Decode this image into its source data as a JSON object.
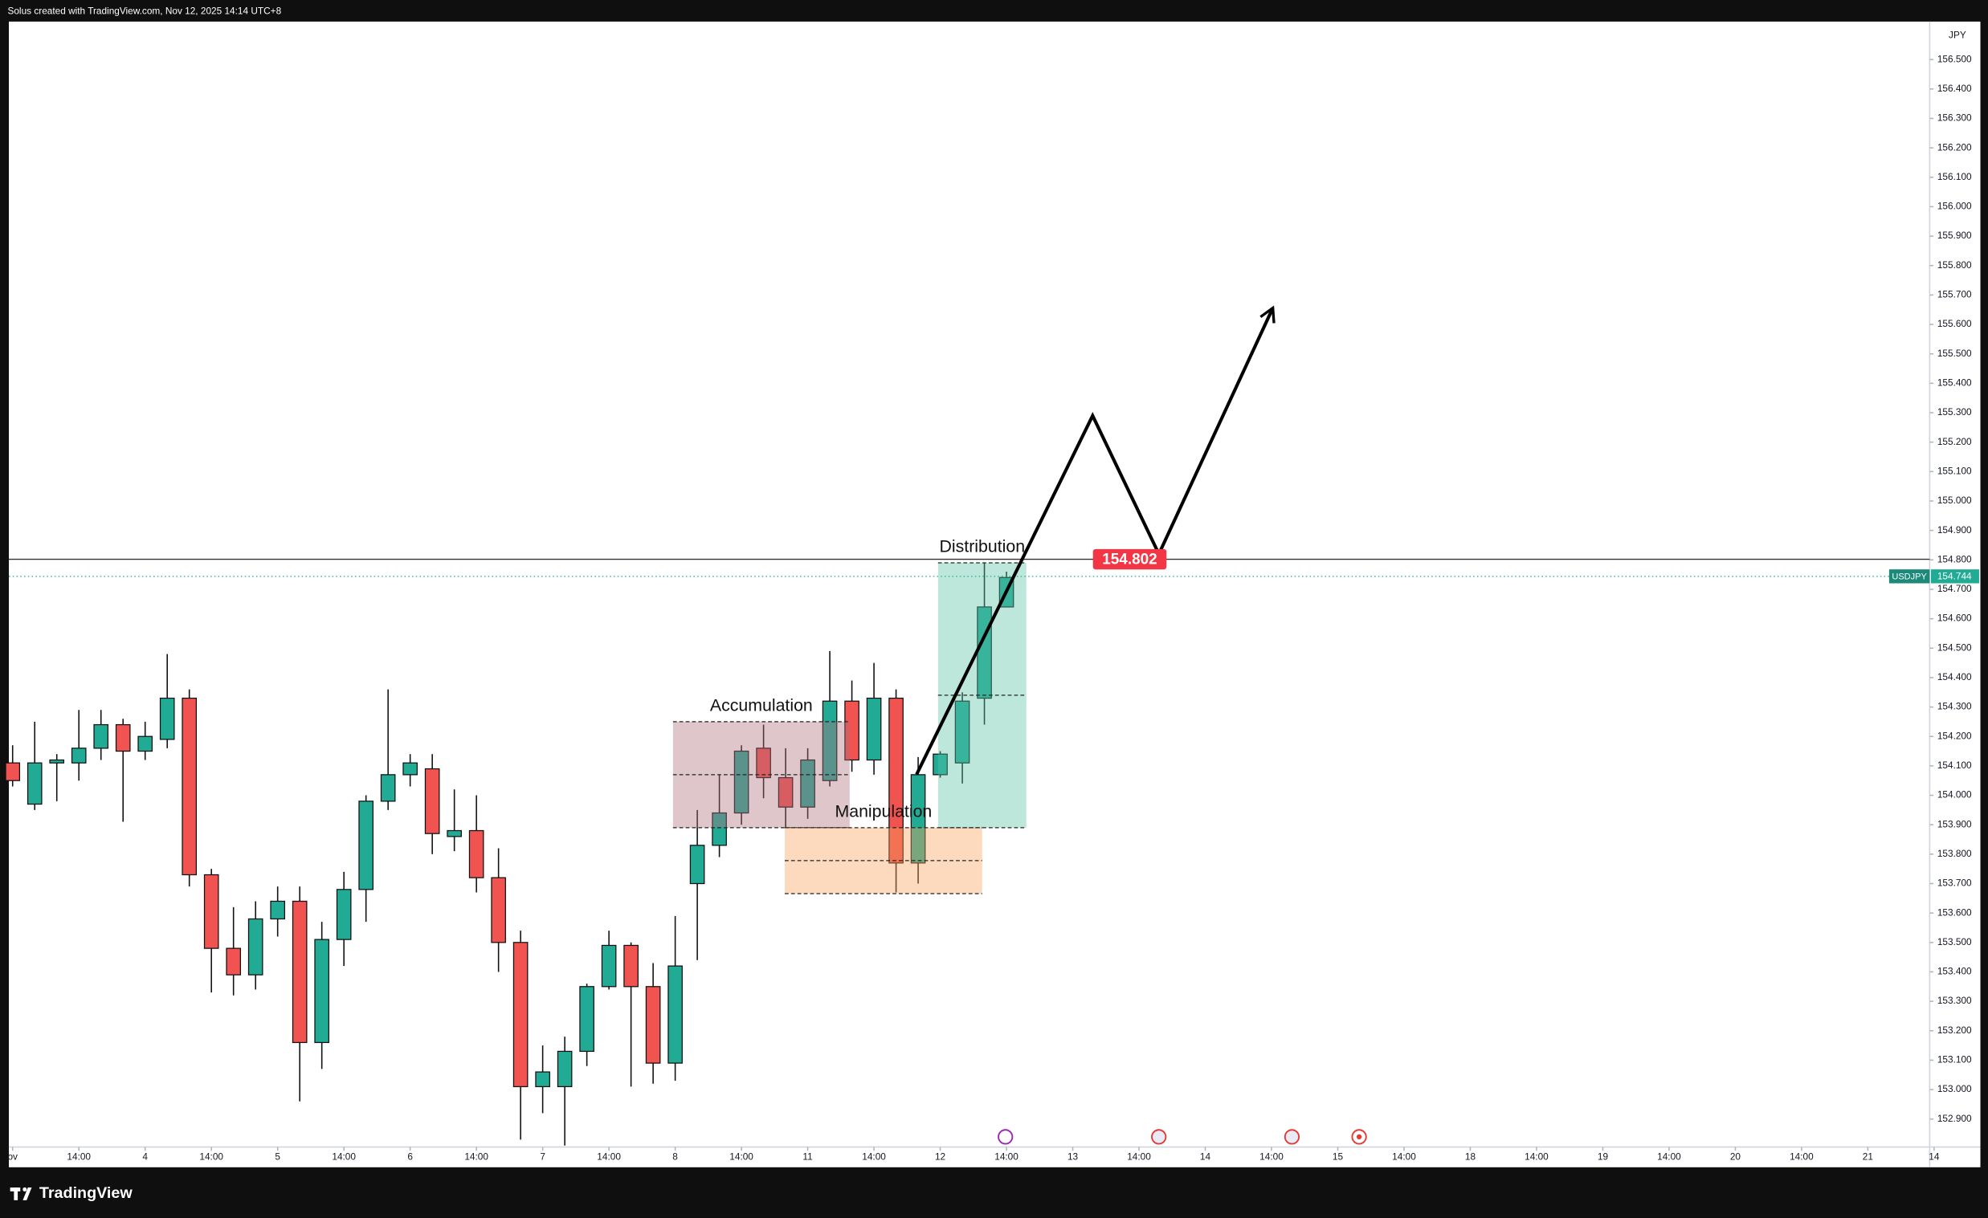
{
  "header": "Solus created with TradingView.com, Nov 12, 2025 14:14 UTC+8",
  "footer": "TradingView",
  "chart_data": {
    "type": "candlestick",
    "symbol": "USDJPY",
    "currency": "JPY",
    "up_color": "#22ab94",
    "down_color": "#f05350",
    "x": [
      0,
      1,
      2,
      3,
      4,
      5,
      6,
      7,
      8,
      9,
      10,
      11,
      12,
      13,
      14,
      15,
      16,
      17,
      18,
      19,
      20,
      21,
      22,
      23,
      24,
      25,
      26,
      27,
      28,
      29,
      30,
      31,
      32,
      33,
      34,
      35,
      36,
      37,
      38,
      39,
      40,
      41,
      42,
      43,
      44,
      45
    ],
    "open": [
      154.11,
      153.97,
      154.11,
      154.11,
      154.16,
      154.24,
      154.15,
      154.19,
      154.33,
      153.73,
      153.48,
      153.39,
      153.58,
      153.64,
      153.16,
      153.51,
      153.68,
      153.98,
      154.07,
      154.09,
      153.86,
      153.88,
      153.72,
      153.5,
      153.01,
      153.01,
      153.13,
      153.35,
      153.49,
      153.35,
      153.09,
      153.7,
      153.83,
      153.94,
      154.16,
      154.06,
      153.96,
      154.05,
      154.32,
      154.12,
      154.33,
      153.77,
      154.07,
      154.11,
      154.33,
      154.64
    ],
    "high": [
      154.17,
      154.25,
      154.14,
      154.29,
      154.29,
      154.26,
      154.25,
      154.48,
      154.36,
      153.75,
      153.62,
      153.64,
      153.69,
      153.69,
      153.57,
      153.74,
      154.0,
      154.36,
      154.14,
      154.14,
      154.02,
      154.0,
      153.82,
      153.54,
      153.15,
      153.18,
      153.36,
      153.54,
      153.5,
      153.43,
      153.59,
      153.95,
      154.07,
      154.17,
      154.24,
      154.16,
      154.16,
      154.49,
      154.39,
      154.45,
      154.36,
      154.13,
      154.15,
      154.35,
      154.79,
      154.76
    ],
    "low": [
      154.03,
      153.95,
      153.98,
      154.05,
      154.12,
      153.91,
      154.12,
      154.16,
      153.69,
      153.33,
      153.32,
      153.34,
      153.52,
      152.96,
      153.07,
      153.42,
      153.57,
      153.95,
      154.03,
      153.8,
      153.81,
      153.67,
      153.4,
      152.83,
      152.92,
      152.81,
      153.08,
      153.34,
      153.01,
      153.02,
      153.03,
      153.44,
      153.79,
      153.9,
      153.99,
      153.89,
      153.92,
      154.03,
      154.08,
      154.07,
      153.67,
      153.7,
      154.06,
      154.04,
      154.24,
      154.64
    ],
    "close": [
      154.05,
      154.11,
      154.12,
      154.16,
      154.24,
      154.15,
      154.2,
      154.33,
      153.73,
      153.48,
      153.39,
      153.58,
      153.64,
      153.16,
      153.51,
      153.68,
      153.98,
      154.07,
      154.11,
      153.87,
      153.88,
      153.72,
      153.5,
      153.01,
      153.06,
      153.13,
      153.35,
      153.49,
      153.35,
      153.09,
      153.42,
      153.83,
      153.94,
      154.15,
      154.06,
      153.96,
      154.12,
      154.32,
      154.12,
      154.33,
      153.77,
      154.07,
      154.14,
      154.32,
      154.64,
      154.74
    ],
    "xlim": [
      -0.17,
      86.8
    ],
    "ylim": [
      152.805,
      156.629
    ],
    "xticks": [
      {
        "value": 0,
        "label": "ov"
      },
      {
        "value": 3,
        "label": "14:00"
      },
      {
        "value": 6,
        "label": "4"
      },
      {
        "value": 9,
        "label": "14:00"
      },
      {
        "value": 12,
        "label": "5"
      },
      {
        "value": 15,
        "label": "14:00"
      },
      {
        "value": 18,
        "label": "6"
      },
      {
        "value": 21,
        "label": "14:00"
      },
      {
        "value": 24,
        "label": "7"
      },
      {
        "value": 27,
        "label": "14:00"
      },
      {
        "value": 30,
        "label": "8"
      },
      {
        "value": 33,
        "label": "14:00"
      },
      {
        "value": 36,
        "label": "11"
      },
      {
        "value": 39,
        "label": "14:00"
      },
      {
        "value": 42,
        "label": "12"
      },
      {
        "value": 45,
        "label": "14:00"
      },
      {
        "value": 48,
        "label": "13"
      },
      {
        "value": 51,
        "label": "14:00"
      },
      {
        "value": 54,
        "label": "14"
      },
      {
        "value": 57,
        "label": "14:00"
      },
      {
        "value": 60,
        "label": "15"
      },
      {
        "value": 63,
        "label": "14:00"
      },
      {
        "value": 66,
        "label": "18"
      },
      {
        "value": 69,
        "label": "14:00"
      },
      {
        "value": 72,
        "label": "19"
      },
      {
        "value": 75,
        "label": "14:00"
      },
      {
        "value": 78,
        "label": "20"
      },
      {
        "value": 81,
        "label": "14:00"
      },
      {
        "value": 84,
        "label": "21"
      },
      {
        "value": 87,
        "label": "14"
      }
    ],
    "yticks": [
      {
        "value": 152.9,
        "label": "152.900"
      },
      {
        "value": 153.0,
        "label": "153.000"
      },
      {
        "value": 153.1,
        "label": "153.100"
      },
      {
        "value": 153.2,
        "label": "153.200"
      },
      {
        "value": 153.3,
        "label": "153.300"
      },
      {
        "value": 153.4,
        "label": "153.400"
      },
      {
        "value": 153.5,
        "label": "153.500"
      },
      {
        "value": 153.6,
        "label": "153.600"
      },
      {
        "value": 153.7,
        "label": "153.700"
      },
      {
        "value": 153.8,
        "label": "153.800"
      },
      {
        "value": 153.9,
        "label": "153.900"
      },
      {
        "value": 154.0,
        "label": "154.000"
      },
      {
        "value": 154.1,
        "label": "154.100"
      },
      {
        "value": 154.2,
        "label": "154.200"
      },
      {
        "value": 154.3,
        "label": "154.300"
      },
      {
        "value": 154.4,
        "label": "154.400"
      },
      {
        "value": 154.5,
        "label": "154.500"
      },
      {
        "value": 154.6,
        "label": "154.600"
      },
      {
        "value": 154.7,
        "label": "154.700"
      },
      {
        "value": 154.8,
        "label": "154.800"
      },
      {
        "value": 154.9,
        "label": "154.900"
      },
      {
        "value": 155.0,
        "label": "155.000"
      },
      {
        "value": 155.1,
        "label": "155.100"
      },
      {
        "value": 155.2,
        "label": "155.200"
      },
      {
        "value": 155.3,
        "label": "155.300"
      },
      {
        "value": 155.4,
        "label": "155.400"
      },
      {
        "value": 155.5,
        "label": "155.500"
      },
      {
        "value": 155.6,
        "label": "155.600"
      },
      {
        "value": 155.7,
        "label": "155.700"
      },
      {
        "value": 155.8,
        "label": "155.800"
      },
      {
        "value": 155.9,
        "label": "155.900"
      },
      {
        "value": 156.0,
        "label": "156.000"
      },
      {
        "value": 156.1,
        "label": "156.100"
      },
      {
        "value": 156.2,
        "label": "156.200"
      },
      {
        "value": 156.3,
        "label": "156.300"
      },
      {
        "value": 156.4,
        "label": "156.400"
      },
      {
        "value": 156.5,
        "label": "156.500"
      }
    ],
    "last_price": 154.744,
    "level": 154.802,
    "zones": [
      {
        "label": "Accumulation",
        "color": "#b0707c",
        "x": [
          29.9,
          37.9
        ],
        "y": [
          153.89,
          154.25
        ]
      },
      {
        "label": "Manipulation",
        "color": "#f9a35a",
        "x": [
          34.96,
          43.9
        ],
        "y": [
          153.666,
          153.89
        ]
      },
      {
        "label": "Distribution",
        "color": "#5cc2a8",
        "x": [
          41.9,
          45.9
        ],
        "y": [
          153.89,
          154.79
        ]
      }
    ],
    "projection": {
      "x": [
        40.93,
        48.9,
        51.9,
        57.06
      ],
      "y": [
        154.071,
        155.29,
        154.82,
        155.656
      ]
    }
  }
}
